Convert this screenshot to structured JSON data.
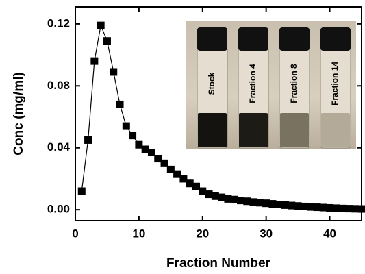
{
  "chart_data": {
    "type": "scatter",
    "x_label": "Fraction Number",
    "y_label": "Conc (mg/ml)",
    "x": [
      1,
      2,
      3,
      4,
      5,
      6,
      7,
      8,
      9,
      10,
      11,
      12,
      13,
      14,
      15,
      16,
      17,
      18,
      19,
      20,
      21,
      22,
      23,
      24,
      25,
      26,
      27,
      28,
      29,
      30,
      31,
      32,
      33,
      34,
      35,
      36,
      37,
      38,
      39,
      40,
      41,
      42,
      43,
      44,
      45
    ],
    "values": [
      0.012,
      0.045,
      0.096,
      0.119,
      0.109,
      0.089,
      0.068,
      0.054,
      0.048,
      0.042,
      0.039,
      0.037,
      0.033,
      0.03,
      0.026,
      0.023,
      0.02,
      0.017,
      0.015,
      0.012,
      0.01,
      0.0088,
      0.008,
      0.007,
      0.0066,
      0.006,
      0.0055,
      0.005,
      0.0046,
      0.0042,
      0.0038,
      0.0034,
      0.003,
      0.0027,
      0.0024,
      0.0021,
      0.0018,
      0.0016,
      0.0014,
      0.0012,
      0.001,
      0.0008,
      0.0007,
      0.0006,
      0.0005
    ],
    "color": "#000000",
    "xlim": [
      0,
      45
    ],
    "xticks": [
      0,
      10,
      20,
      30,
      40
    ],
    "ylim": [
      -0.007,
      0.131
    ],
    "yticks": [
      {
        "value": 0,
        "label": "0.00"
      },
      0.04,
      0.08,
      0.12
    ],
    "annotations": [
      "Stock",
      "Fraction 4",
      "Fraction 8",
      "Fraction 14"
    ]
  }
}
